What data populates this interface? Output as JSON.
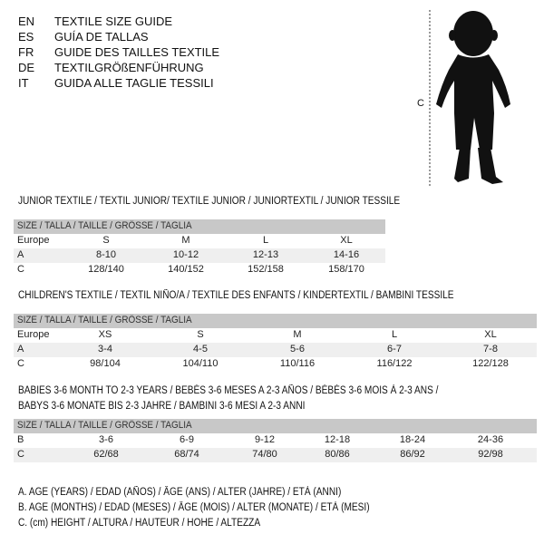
{
  "header": {
    "lines": [
      {
        "code": "EN",
        "text": "TEXTILE SIZE GUIDE"
      },
      {
        "code": "ES",
        "text": "GUÍA DE TALLAS"
      },
      {
        "code": "FR",
        "text": "GUIDE DES TAILLES TEXTILE"
      },
      {
        "code": "DE",
        "text": "TEXTILGRÖßENFÜHRUNG"
      },
      {
        "code": "IT",
        "text": "GUIDA ALLE TAGLIE TESSILI"
      }
    ]
  },
  "figure": {
    "measure_label": "C"
  },
  "size_header": "SIZE / TALLA / TAILLE / GRÖSSE / TAGLIA",
  "junior": {
    "title": "JUNIOR TEXTILE / TEXTIL JUNIOR/ TEXTILE JUNIOR / JUNIORTEXTIL / JUNIOR TESSILE",
    "rows": [
      {
        "label": "Europe",
        "values": [
          "S",
          "M",
          "L",
          "XL"
        ]
      },
      {
        "label": "A",
        "values": [
          "8-10",
          "10-12",
          "12-13",
          "14-16"
        ]
      },
      {
        "label": "C",
        "values": [
          "128/140",
          "140/152",
          "152/158",
          "158/170"
        ]
      }
    ]
  },
  "children": {
    "title": "CHILDREN'S TEXTILE / TEXTIL NIÑO/A / TEXTILE DES ENFANTS / KINDERTEXTIL / BAMBINI TESSILE",
    "rows": [
      {
        "label": "Europe",
        "values": [
          "XS",
          "S",
          "M",
          "L",
          "XL"
        ]
      },
      {
        "label": "A",
        "values": [
          "3-4",
          "4-5",
          "5-6",
          "6-7",
          "7-8"
        ]
      },
      {
        "label": "C",
        "values": [
          "98/104",
          "104/110",
          "110/116",
          "116/122",
          "122/128"
        ]
      }
    ]
  },
  "babies": {
    "title_line1": "BABIES 3-6 MONTH TO 2-3 YEARS / BEBÉS 3-6 MESES A 2-3 AÑOS / BÉBÉS 3-6 MOIS À 2-3 ANS /",
    "title_line2": "BABYS 3-6 MONATE BIS 2-3 JAHRE / BAMBINI 3-6 MESI A 2-3 ANNI",
    "rows": [
      {
        "label": "B",
        "values": [
          "3-6",
          "6-9",
          "9-12",
          "12-18",
          "18-24",
          "24-36"
        ]
      },
      {
        "label": "C",
        "values": [
          "62/68",
          "68/74",
          "74/80",
          "80/86",
          "86/92",
          "92/98"
        ]
      }
    ]
  },
  "legend": [
    "A. AGE (YEARS) / EDAD (AÑOS) / ÂGE (ANS) / ALTER (JAHRE) / ETÀ (ANNI)",
    "B. AGE (MONTHS) / EDAD (MESES) / ÂGE (MOIS) / ALTER (MONATE) / ETÀ (MESI)",
    "C. (cm) HEIGHT / ALTURA / HAUTEUR / HÖHE / ALTEZZA"
  ]
}
